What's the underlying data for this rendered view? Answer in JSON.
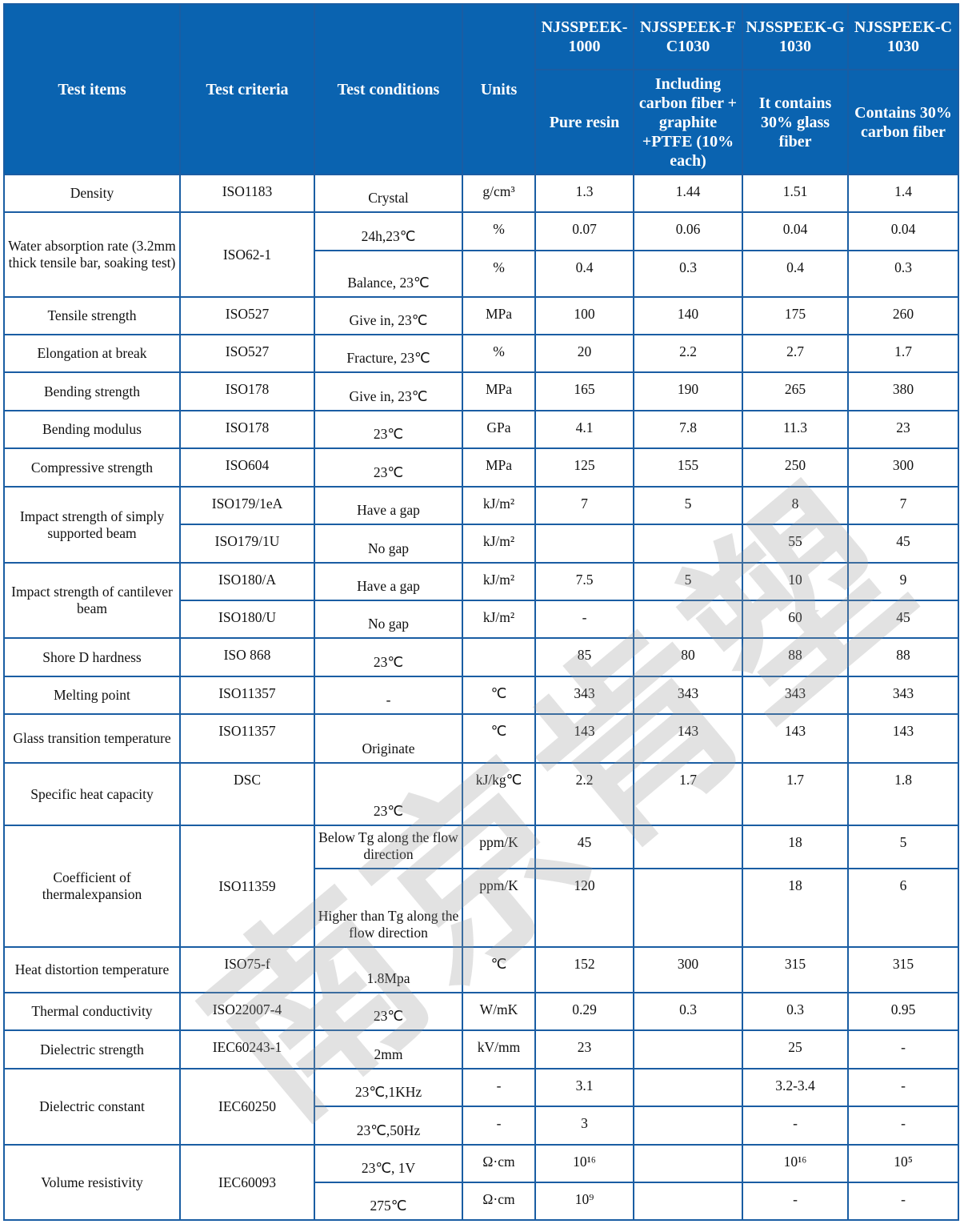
{
  "header": {
    "test_items": "Test items",
    "test_criteria": "Test criteria",
    "test_conditions": "Test conditions",
    "units": "Units",
    "products": [
      {
        "name": "NJSSPEEK-1000",
        "desc": "Pure resin"
      },
      {
        "name": "NJSSPEEK-FC1030",
        "desc": "Including carbon fiber + graphite +PTFE (10% each)"
      },
      {
        "name": "NJSSPEEK-G1030",
        "desc": "It contains 30% glass fiber"
      },
      {
        "name": "NJSSPEEK-C1030",
        "desc": "Contains 30% carbon fiber"
      }
    ]
  },
  "watermark": "南京肯塑",
  "colors": {
    "header_bg": "#0a63b0",
    "border": "#1a5da3"
  },
  "rows": [
    {
      "item": "Density",
      "criteria": "ISO1183",
      "sub": [
        {
          "cond": "Crystal",
          "unit": "g/cm³",
          "v": [
            "1.3",
            "1.44",
            "1.51",
            "1.4"
          ]
        }
      ]
    },
    {
      "item": "Water absorption rate (3.2mm thick tensile bar, soaking test)",
      "criteria": "ISO62-1",
      "sub": [
        {
          "cond": "24h,23℃",
          "unit": "%",
          "v": [
            "0.07",
            "0.06",
            "0.04",
            "0.04"
          ]
        },
        {
          "cond": "Balance, 23℃",
          "unit": "%",
          "v": [
            "0.4",
            "0.3",
            "0.4",
            "0.3"
          ]
        }
      ]
    },
    {
      "item": "Tensile strength",
      "criteria": "ISO527",
      "sub": [
        {
          "cond": "Give in, 23℃",
          "unit": "MPa",
          "v": [
            "100",
            "140",
            "175",
            "260"
          ]
        }
      ]
    },
    {
      "item": "Elongation at break",
      "criteria": "ISO527",
      "sub": [
        {
          "cond": "Fracture, 23℃",
          "unit": "%",
          "v": [
            "20",
            "2.2",
            "2.7",
            "1.7"
          ]
        }
      ]
    },
    {
      "item": "Bending strength",
      "criteria": "ISO178",
      "sub": [
        {
          "cond": "Give in, 23℃",
          "unit": "MPa",
          "v": [
            "165",
            "190",
            "265",
            "380"
          ]
        }
      ]
    },
    {
      "item": "Bending modulus",
      "criteria": "ISO178",
      "sub": [
        {
          "cond": "23℃",
          "unit": "GPa",
          "v": [
            "4.1",
            "7.8",
            "11.3",
            "23"
          ]
        }
      ]
    },
    {
      "item": "Compressive strength",
      "criteria": "ISO604",
      "sub": [
        {
          "cond": "23℃",
          "unit": "MPa",
          "v": [
            "125",
            "155",
            "250",
            "300"
          ]
        }
      ]
    },
    {
      "item": "Impact strength of simply supported beam",
      "sub": [
        {
          "criteria": "ISO179/1eA",
          "cond": "Have a gap",
          "unit": "kJ/m²",
          "v": [
            "7",
            "5",
            "8",
            "7"
          ]
        },
        {
          "criteria": "ISO179/1U",
          "cond": "No gap",
          "unit": "kJ/m²",
          "v": [
            "",
            "",
            "55",
            "45"
          ]
        }
      ]
    },
    {
      "item": "Impact strength of cantilever beam",
      "sub": [
        {
          "criteria": "ISO180/A",
          "cond": "Have a gap",
          "unit": "kJ/m²",
          "v": [
            "7.5",
            "5",
            "10",
            "9"
          ]
        },
        {
          "criteria": "ISO180/U",
          "cond": "No gap",
          "unit": "kJ/m²",
          "v": [
            "-",
            "",
            "60",
            "45"
          ]
        }
      ]
    },
    {
      "item": "Shore D hardness",
      "criteria": "ISO 868",
      "sub": [
        {
          "cond": "23℃",
          "unit": "",
          "v": [
            "85",
            "80",
            "88",
            "88"
          ]
        }
      ]
    },
    {
      "item": "Melting point",
      "criteria": "ISO11357",
      "sub": [
        {
          "cond": "-",
          "unit": "℃",
          "v": [
            "343",
            "343",
            "343",
            "343"
          ]
        }
      ]
    },
    {
      "item": "Glass transition temperature",
      "criteria": "ISO11357",
      "sub": [
        {
          "cond": "Originate",
          "unit": "℃",
          "v": [
            "143",
            "143",
            "143",
            "143"
          ]
        }
      ]
    },
    {
      "item": "Specific heat capacity",
      "criteria": "DSC",
      "sub": [
        {
          "cond": "23℃",
          "unit": "kJ/kg℃",
          "v": [
            "2.2",
            "1.7",
            "1.7",
            "1.8"
          ]
        }
      ]
    },
    {
      "item": "Coefficient of thermalexpansion",
      "criteria": "ISO11359",
      "sub": [
        {
          "cond": "Below Tg along the flow direction",
          "unit": "ppm/K",
          "v": [
            "45",
            "",
            "18",
            "5"
          ]
        },
        {
          "cond": "Higher than Tg along the flow direction",
          "unit": "ppm/K",
          "v": [
            "120",
            "",
            "18",
            "6"
          ]
        }
      ]
    },
    {
      "item": "Heat distortion temperature",
      "criteria": "ISO75-f",
      "sub": [
        {
          "cond": "1.8Mpa",
          "unit": "℃",
          "v": [
            "152",
            "300",
            "315",
            "315"
          ]
        }
      ]
    },
    {
      "item": "Thermal conductivity",
      "criteria": "ISO22007-4",
      "sub": [
        {
          "cond": "23℃",
          "unit": "W/mK",
          "v": [
            "0.29",
            "0.3",
            "0.3",
            "0.95"
          ]
        }
      ]
    },
    {
      "item": "Dielectric strength",
      "criteria": "IEC60243-1",
      "sub": [
        {
          "cond": "2mm",
          "unit": "kV/mm",
          "v": [
            "23",
            "",
            "25",
            "-"
          ]
        }
      ]
    },
    {
      "item": "Dielectric constant",
      "criteria": "IEC60250",
      "sub": [
        {
          "cond": "23℃,1KHz",
          "unit": "-",
          "v": [
            "3.1",
            "",
            "3.2-3.4",
            "-"
          ]
        },
        {
          "cond": "23℃,50Hz",
          "unit": "-",
          "v": [
            "3",
            "",
            "-",
            "-"
          ]
        }
      ]
    },
    {
      "item": "Volume resistivity",
      "criteria": "IEC60093",
      "sub": [
        {
          "cond": "23℃, 1V",
          "unit": "Ω·cm",
          "v": [
            "10¹⁶",
            "",
            "10¹⁶",
            "10⁵"
          ]
        },
        {
          "cond": "275℃",
          "unit": "Ω·cm",
          "v": [
            "10⁹",
            "",
            "-",
            "-"
          ]
        }
      ]
    }
  ]
}
